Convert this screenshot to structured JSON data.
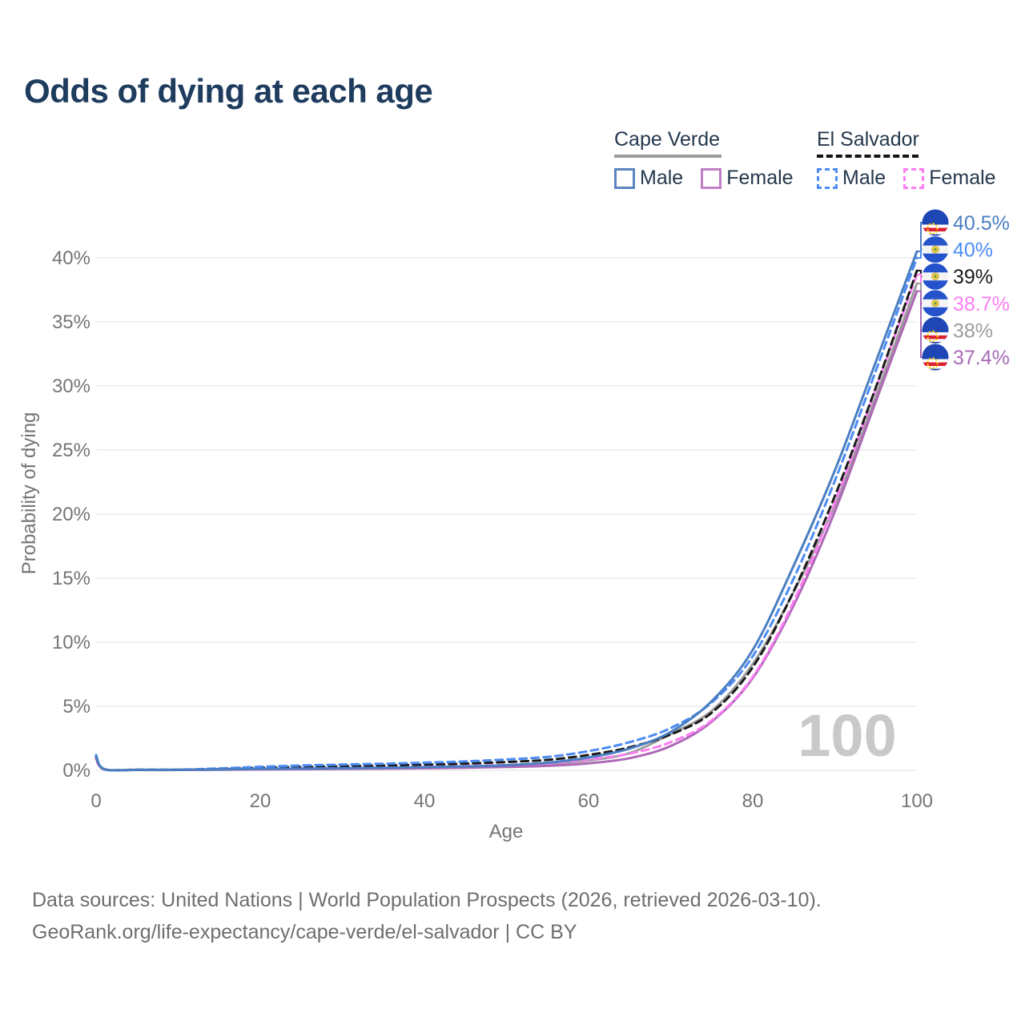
{
  "title": "Odds of dying at each age",
  "watermark": "100",
  "legend": {
    "groups": [
      {
        "name": "Cape Verde",
        "line_style": "solid",
        "underline_color": "#9d9d9d",
        "items": [
          {
            "label": "Male",
            "color": "#5b84c0",
            "dashed": false
          },
          {
            "label": "Female",
            "color": "#c07fc4",
            "dashed": false
          }
        ]
      },
      {
        "name": "El Salvador",
        "line_style": "dashed",
        "underline_color": "#141414",
        "items": [
          {
            "label": "Male",
            "color": "#4b8bf4",
            "dashed": true
          },
          {
            "label": "Female",
            "color": "#fc7df3",
            "dashed": true
          }
        ]
      }
    ]
  },
  "footer": {
    "line1": "Data sources: United Nations | World Population Prospects (2026, retrieved 2026-03-10).",
    "line2": "GeoRank.org/life-expectancy/cape-verde/el-salvador | CC BY"
  },
  "chart_data": {
    "type": "line",
    "title": "Odds of dying at each age",
    "xlabel": "Age",
    "ylabel": "Probability of dying",
    "xlim": [
      0,
      100
    ],
    "ylim": [
      0,
      42
    ],
    "grid": true,
    "legend_position": "top-right",
    "x_ticks": [
      {
        "v": 0,
        "label": "0"
      },
      {
        "v": 20,
        "label": "20"
      },
      {
        "v": 40,
        "label": "40"
      },
      {
        "v": 60,
        "label": "60"
      },
      {
        "v": 80,
        "label": "80"
      },
      {
        "v": 100,
        "label": "100"
      }
    ],
    "y_ticks": [
      {
        "v": 0,
        "label": "0%"
      },
      {
        "v": 5,
        "label": "5%"
      },
      {
        "v": 10,
        "label": "10%"
      },
      {
        "v": 15,
        "label": "15%"
      },
      {
        "v": 20,
        "label": "20%"
      },
      {
        "v": 25,
        "label": "25%"
      },
      {
        "v": 30,
        "label": "30%"
      },
      {
        "v": 35,
        "label": "35%"
      },
      {
        "v": 40,
        "label": "40%"
      }
    ],
    "x": [
      0,
      1,
      5,
      10,
      15,
      20,
      25,
      30,
      35,
      40,
      45,
      50,
      55,
      60,
      65,
      70,
      75,
      80,
      85,
      90,
      95,
      100
    ],
    "series": [
      {
        "name": "Cape Verde Male",
        "country": "Cape Verde",
        "sex": "male",
        "color": "#4a7ec1",
        "dashed": false,
        "values": [
          1.1,
          0.09,
          0.04,
          0.04,
          0.07,
          0.11,
          0.14,
          0.17,
          0.2,
          0.25,
          0.31,
          0.4,
          0.6,
          1.0,
          1.7,
          3.0,
          5.4,
          9.4,
          16.0,
          23.4,
          31.9,
          40.5
        ]
      },
      {
        "name": "El Salvador Male",
        "country": "El Salvador",
        "sex": "male",
        "color": "#4b8bf4",
        "dashed": true,
        "values": [
          1.2,
          0.1,
          0.05,
          0.06,
          0.15,
          0.28,
          0.38,
          0.45,
          0.52,
          0.6,
          0.7,
          0.85,
          1.05,
          1.5,
          2.2,
          3.3,
          5.3,
          8.9,
          15.0,
          22.6,
          31.2,
          40.0
        ]
      },
      {
        "name": "El Salvador Average",
        "country": "El Salvador",
        "sex": "average",
        "color": "#1a1a1a",
        "dashed": true,
        "values": [
          1.05,
          0.09,
          0.05,
          0.05,
          0.11,
          0.2,
          0.27,
          0.32,
          0.38,
          0.45,
          0.53,
          0.65,
          0.82,
          1.2,
          1.8,
          2.8,
          4.5,
          8.05,
          14.0,
          21.4,
          29.9,
          39.0
        ]
      },
      {
        "name": "El Salvador Female",
        "country": "El Salvador",
        "sex": "female",
        "color": "#fc7df3",
        "dashed": true,
        "values": [
          0.9,
          0.08,
          0.04,
          0.04,
          0.08,
          0.12,
          0.15,
          0.19,
          0.23,
          0.28,
          0.35,
          0.42,
          0.55,
          0.85,
          1.3,
          2.2,
          3.9,
          7.3,
          13.2,
          20.9,
          29.8,
          38.7
        ]
      },
      {
        "name": "Cape Verde Average",
        "country": "Cape Verde",
        "sex": "average",
        "color": "#9d9d9d",
        "dashed": false,
        "values": [
          1.0,
          0.08,
          0.04,
          0.04,
          0.06,
          0.09,
          0.12,
          0.15,
          0.18,
          0.22,
          0.28,
          0.36,
          0.5,
          0.78,
          1.35,
          2.85,
          4.65,
          8.3,
          13.95,
          20.7,
          29.2,
          38.0
        ]
      },
      {
        "name": "Cape Verde Female",
        "country": "Cape Verde",
        "sex": "female",
        "color": "#ae68b6",
        "dashed": false,
        "values": [
          0.95,
          0.08,
          0.03,
          0.03,
          0.05,
          0.07,
          0.09,
          0.11,
          0.13,
          0.16,
          0.2,
          0.26,
          0.35,
          0.55,
          0.95,
          1.9,
          3.8,
          7.2,
          12.9,
          20.2,
          28.8,
          37.4
        ]
      }
    ],
    "end_labels": [
      {
        "label": "40.5%",
        "value": 40.5,
        "color": "#4a7ec1",
        "flag": "cape-verde",
        "series": 0
      },
      {
        "label": "40%",
        "value": 40.0,
        "color": "#4b8bf4",
        "flag": "el-salvador",
        "series": 1
      },
      {
        "label": "39%",
        "value": 39.0,
        "color": "#1a1a1a",
        "flag": "el-salvador",
        "series": 2
      },
      {
        "label": "38.7%",
        "value": 38.7,
        "color": "#fc7df3",
        "flag": "el-salvador",
        "series": 3
      },
      {
        "label": "38%",
        "value": 38.0,
        "color": "#9d9d9d",
        "flag": "cape-verde",
        "series": 4
      },
      {
        "label": "37.4%",
        "value": 37.4,
        "color": "#a76ab6",
        "flag": "cape-verde",
        "series": 5
      }
    ]
  }
}
